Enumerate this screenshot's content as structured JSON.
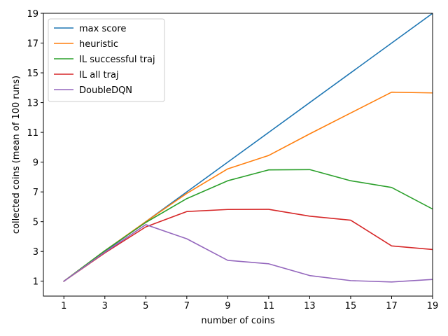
{
  "chart_data": {
    "type": "line",
    "title": "",
    "xlabel": "number of coins",
    "ylabel": "collected coins (mean of 100 runs)",
    "x": [
      1,
      3,
      5,
      7,
      9,
      11,
      13,
      15,
      17,
      19
    ],
    "xlim": [
      0,
      19
    ],
    "ylim": [
      0,
      19
    ],
    "xticks": [
      "1",
      "3",
      "5",
      "7",
      "9",
      "11",
      "13",
      "15",
      "17",
      "19"
    ],
    "yticks": [
      "1",
      "3",
      "5",
      "7",
      "9",
      "11",
      "13",
      "15",
      "17",
      "19"
    ],
    "grid": false,
    "legend_position": "top-left",
    "series": [
      {
        "name": "max score",
        "color": "#1f77b4",
        "values": [
          1,
          3,
          5,
          7,
          9,
          11,
          13,
          15,
          17,
          19
        ]
      },
      {
        "name": "heuristic",
        "color": "#ff7f0e",
        "values": [
          1,
          3.05,
          5,
          6.9,
          8.55,
          9.45,
          10.9,
          12.3,
          13.7,
          13.65
        ]
      },
      {
        "name": "IL successful traj",
        "color": "#2ca02c",
        "values": [
          1,
          3.05,
          4.95,
          6.55,
          7.75,
          8.48,
          8.5,
          7.75,
          7.3,
          5.85
        ]
      },
      {
        "name": "IL all traj",
        "color": "#d62728",
        "values": [
          1,
          2.9,
          4.65,
          5.68,
          5.82,
          5.83,
          5.37,
          5.1,
          3.37,
          3.13
        ]
      },
      {
        "name": "DoubleDQN",
        "color": "#9467bd",
        "values": [
          1,
          2.95,
          4.8,
          3.85,
          2.4,
          2.17,
          1.38,
          1.04,
          0.95,
          1.12
        ]
      }
    ]
  }
}
